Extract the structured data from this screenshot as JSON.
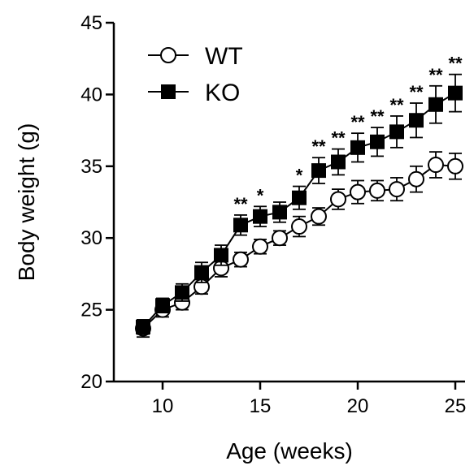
{
  "chart_data": {
    "type": "line",
    "xlabel": "Age (weeks)",
    "ylabel": "Body weight (g)",
    "xlim": [
      7.5,
      25.5
    ],
    "ylim": [
      20,
      45
    ],
    "xticks": [
      "10",
      "15",
      "20",
      "25"
    ],
    "yticks": [
      "20",
      "25",
      "30",
      "35",
      "40",
      "45"
    ],
    "x": [
      9,
      10,
      11,
      12,
      13,
      14,
      15,
      16,
      17,
      18,
      19,
      20,
      21,
      22,
      23,
      24,
      25
    ],
    "legend_position": "top-left",
    "series": [
      {
        "name": "WT",
        "marker": "open-circle",
        "color": "#000000",
        "values": [
          23.7,
          25.0,
          25.5,
          26.6,
          27.9,
          28.5,
          29.4,
          30.0,
          30.8,
          31.5,
          32.7,
          33.2,
          33.3,
          33.4,
          34.1,
          35.1,
          35.0
        ],
        "errors": [
          0.6,
          0.5,
          0.5,
          0.5,
          0.6,
          0.5,
          0.5,
          0.5,
          0.7,
          0.6,
          0.7,
          0.8,
          0.7,
          0.8,
          0.9,
          0.9,
          0.9
        ]
      },
      {
        "name": "KO",
        "marker": "filled-square",
        "color": "#000000",
        "values": [
          23.8,
          25.3,
          26.2,
          27.6,
          28.8,
          30.9,
          31.5,
          31.8,
          32.8,
          34.7,
          35.3,
          36.3,
          36.7,
          37.4,
          38.2,
          39.3,
          40.1
        ],
        "errors": [
          0.5,
          0.5,
          0.6,
          0.7,
          0.7,
          0.7,
          0.7,
          0.7,
          0.8,
          0.9,
          0.9,
          1.0,
          1.0,
          1.1,
          1.2,
          1.3,
          1.3
        ]
      }
    ],
    "annotations": [
      {
        "x": 14,
        "text": "**"
      },
      {
        "x": 15,
        "text": "*"
      },
      {
        "x": 17,
        "text": "*"
      },
      {
        "x": 18,
        "text": "**"
      },
      {
        "x": 19,
        "text": "**"
      },
      {
        "x": 20,
        "text": "**"
      },
      {
        "x": 21,
        "text": "**"
      },
      {
        "x": 22,
        "text": "**"
      },
      {
        "x": 23,
        "text": "**"
      },
      {
        "x": 24,
        "text": "**"
      },
      {
        "x": 25,
        "text": "**"
      }
    ]
  }
}
